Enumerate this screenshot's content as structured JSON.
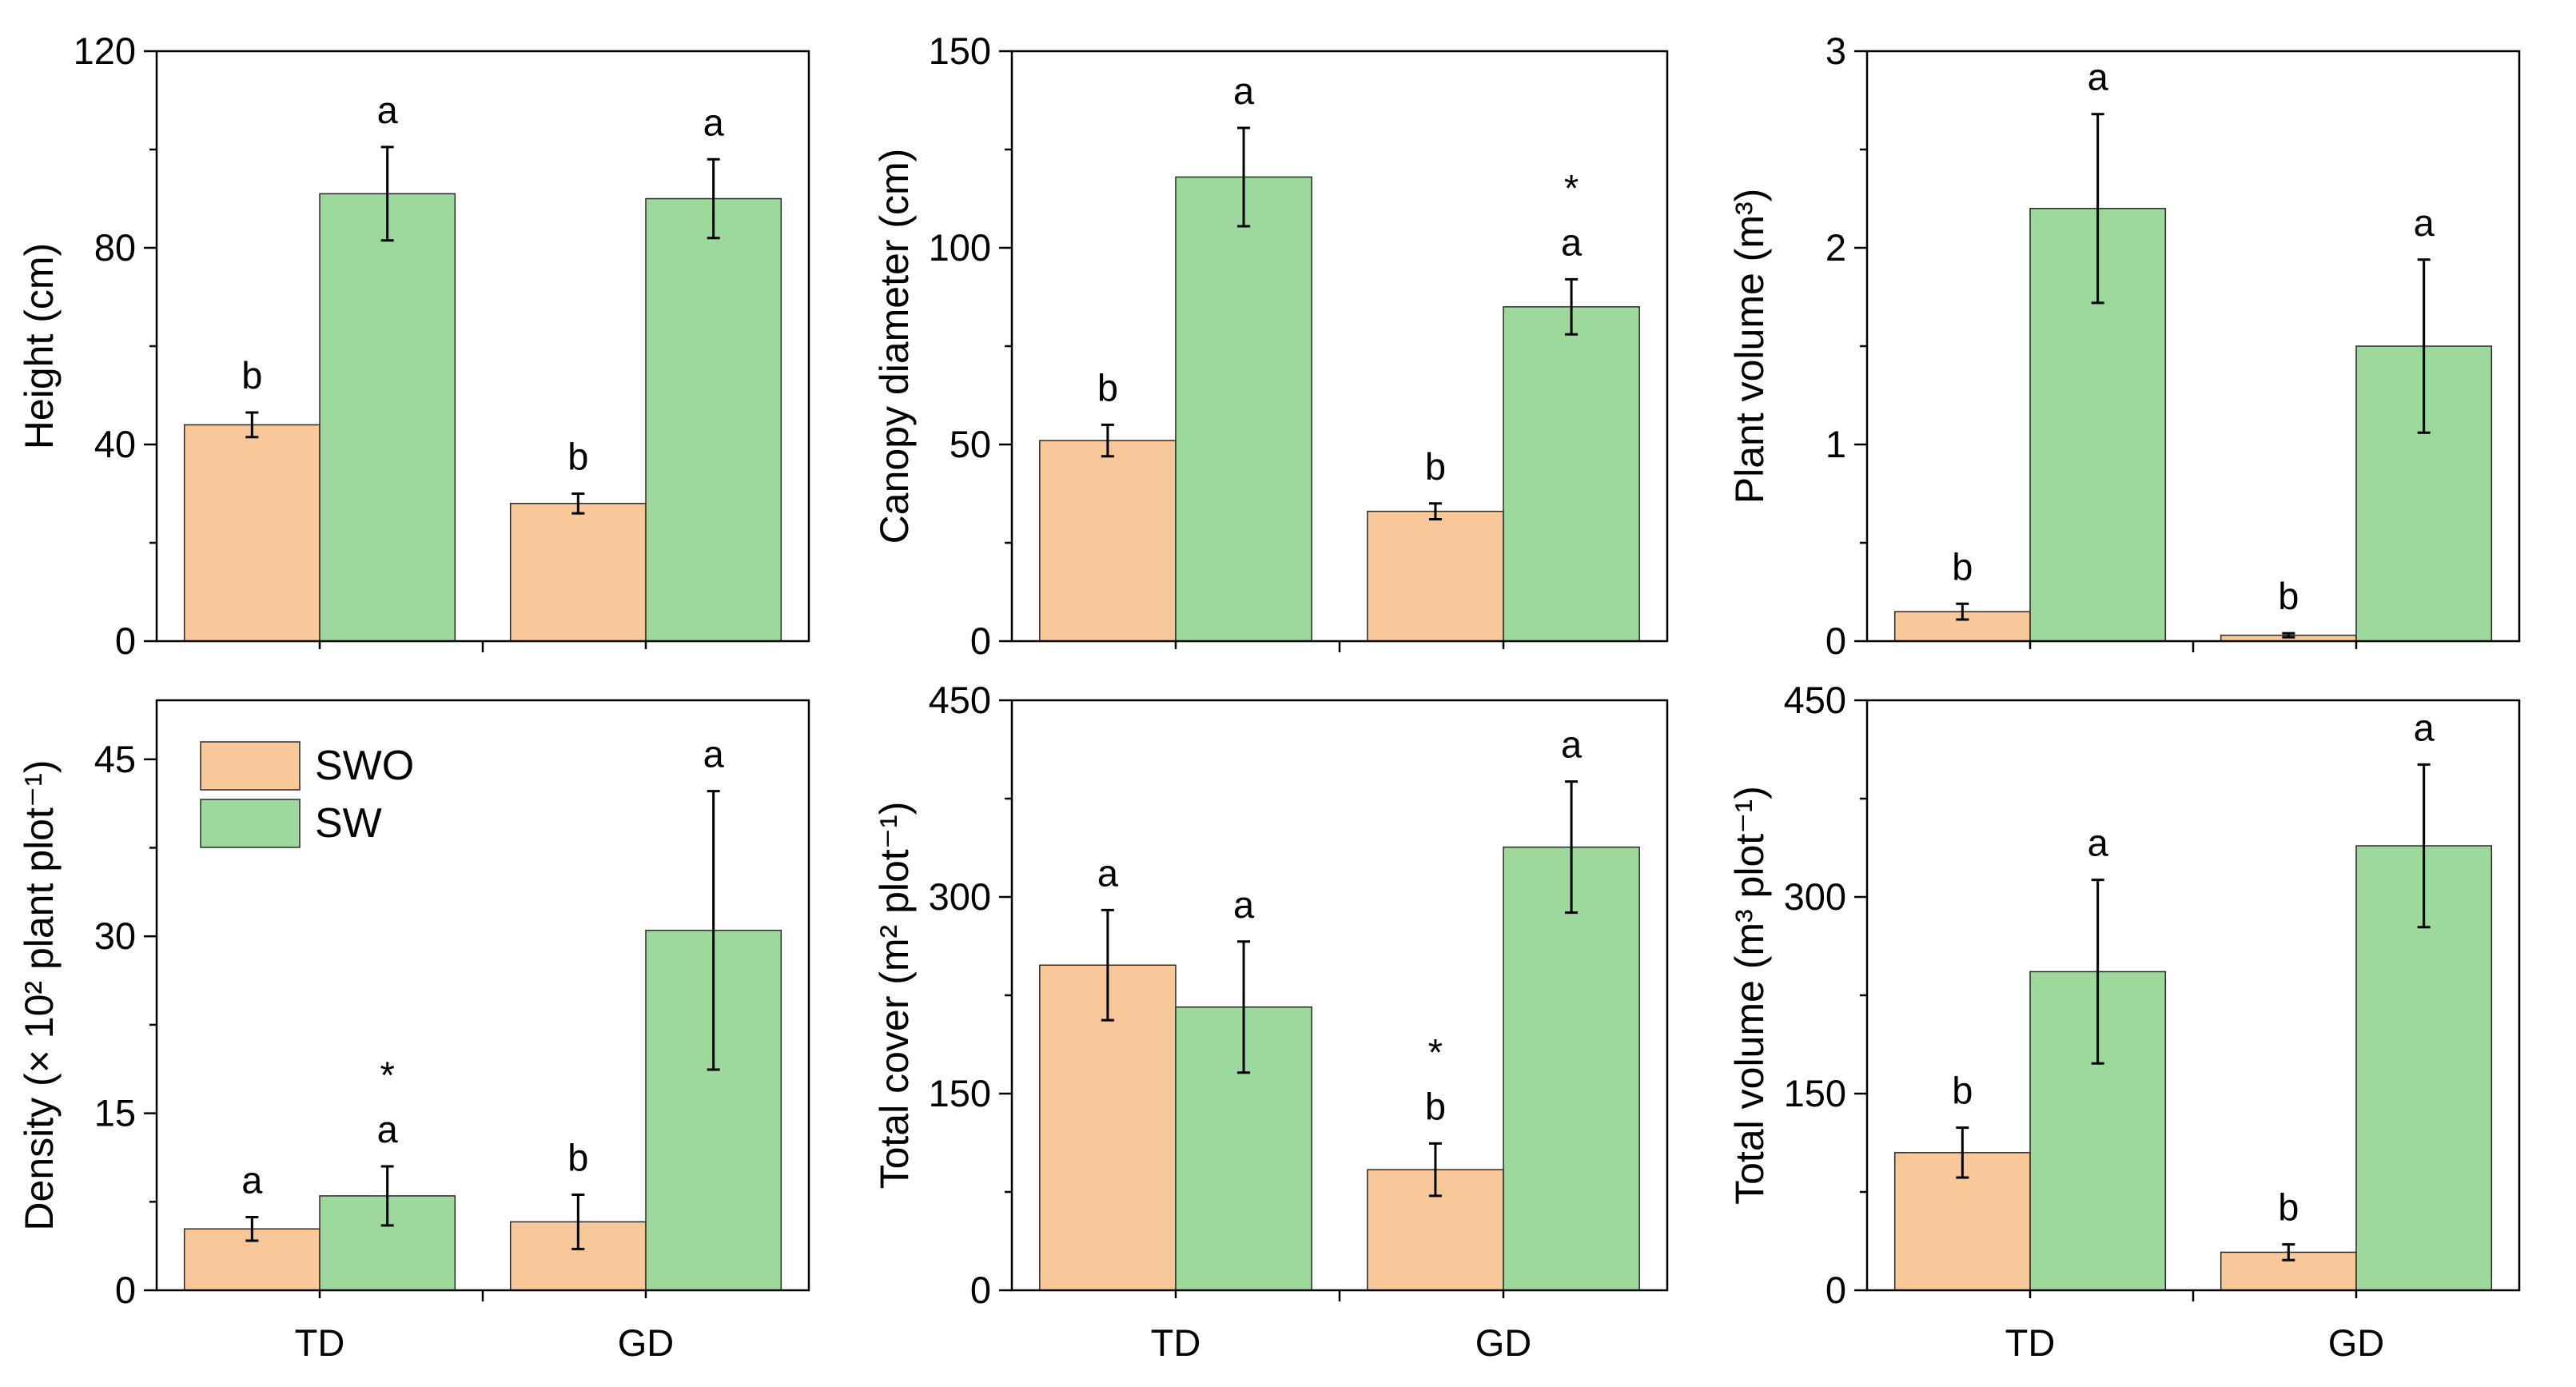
{
  "colors": {
    "SWO": "#F9C898",
    "SW": "#9DD89D",
    "axis": "#000000"
  },
  "legend": {
    "position": "top-left of panel 4",
    "items": [
      {
        "key": "SWO",
        "label": "SWO"
      },
      {
        "key": "SW",
        "label": "SW"
      }
    ]
  },
  "chart_data": [
    {
      "type": "bar",
      "categories": [
        "TD",
        "GD"
      ],
      "ylabel": "Height (cm)",
      "ylim": [
        0,
        120
      ],
      "yticks": [
        0,
        40,
        80,
        120
      ],
      "series": [
        {
          "name": "SWO",
          "values": [
            44,
            28
          ],
          "errors": [
            2.5,
            2
          ],
          "letters": [
            "b",
            "b"
          ],
          "stars": [
            "",
            ""
          ]
        },
        {
          "name": "SW",
          "values": [
            91,
            90
          ],
          "errors": [
            9.5,
            8
          ],
          "letters": [
            "a",
            "a"
          ],
          "stars": [
            "",
            ""
          ]
        }
      ]
    },
    {
      "type": "bar",
      "categories": [
        "TD",
        "GD"
      ],
      "ylabel": "Canopy diameter (cm)",
      "ylim": [
        0,
        150
      ],
      "yticks": [
        0,
        50,
        100,
        150
      ],
      "series": [
        {
          "name": "SWO",
          "values": [
            51,
            33
          ],
          "errors": [
            4,
            2
          ],
          "letters": [
            "b",
            "b"
          ],
          "stars": [
            "",
            ""
          ]
        },
        {
          "name": "SW",
          "values": [
            118,
            85
          ],
          "errors": [
            12.5,
            7
          ],
          "letters": [
            "a",
            "a"
          ],
          "stars": [
            "",
            "*"
          ]
        }
      ]
    },
    {
      "type": "bar",
      "categories": [
        "TD",
        "GD"
      ],
      "ylabel": "Plant volume (m³)",
      "ylim": [
        0,
        3
      ],
      "yticks": [
        0,
        1,
        2,
        3
      ],
      "series": [
        {
          "name": "SWO",
          "values": [
            0.15,
            0.03
          ],
          "errors": [
            0.04,
            0.01
          ],
          "letters": [
            "b",
            "b"
          ],
          "stars": [
            "",
            ""
          ]
        },
        {
          "name": "SW",
          "values": [
            2.2,
            1.5
          ],
          "errors": [
            0.48,
            0.44
          ],
          "letters": [
            "a",
            "a"
          ],
          "stars": [
            "",
            ""
          ]
        }
      ]
    },
    {
      "type": "bar",
      "categories": [
        "TD",
        "GD"
      ],
      "ylabel": "Density (× 10² plant plot⁻¹)",
      "ylim": [
        0,
        50
      ],
      "yticks": [
        0,
        15,
        30,
        45
      ],
      "series": [
        {
          "name": "SWO",
          "values": [
            5.2,
            5.8
          ],
          "errors": [
            1,
            2.3
          ],
          "letters": [
            "a",
            "b"
          ],
          "stars": [
            "",
            ""
          ]
        },
        {
          "name": "SW",
          "values": [
            8,
            30.5
          ],
          "errors": [
            2.5,
            11.8
          ],
          "letters": [
            "a",
            "a"
          ],
          "stars": [
            "*",
            ""
          ]
        }
      ]
    },
    {
      "type": "bar",
      "categories": [
        "TD",
        "GD"
      ],
      "ylabel": "Total cover (m² plot⁻¹)",
      "ylim": [
        0,
        450
      ],
      "yticks": [
        0,
        150,
        300,
        450
      ],
      "series": [
        {
          "name": "SWO",
          "values": [
            248,
            92
          ],
          "errors": [
            42,
            20
          ],
          "letters": [
            "a",
            "b"
          ],
          "stars": [
            "",
            "*"
          ]
        },
        {
          "name": "SW",
          "values": [
            216,
            338
          ],
          "errors": [
            50,
            50
          ],
          "letters": [
            "a",
            "a"
          ],
          "stars": [
            "",
            ""
          ]
        }
      ]
    },
    {
      "type": "bar",
      "categories": [
        "TD",
        "GD"
      ],
      "ylabel": "Total volume (m³ plot⁻¹)",
      "ylim": [
        0,
        450
      ],
      "yticks": [
        0,
        150,
        300,
        450
      ],
      "series": [
        {
          "name": "SWO",
          "values": [
            105,
            29
          ],
          "errors": [
            19,
            6
          ],
          "letters": [
            "b",
            "b"
          ],
          "stars": [
            "",
            ""
          ]
        },
        {
          "name": "SW",
          "values": [
            243,
            339
          ],
          "errors": [
            70,
            62
          ],
          "letters": [
            "a",
            "a"
          ],
          "stars": [
            "",
            ""
          ]
        }
      ]
    }
  ]
}
